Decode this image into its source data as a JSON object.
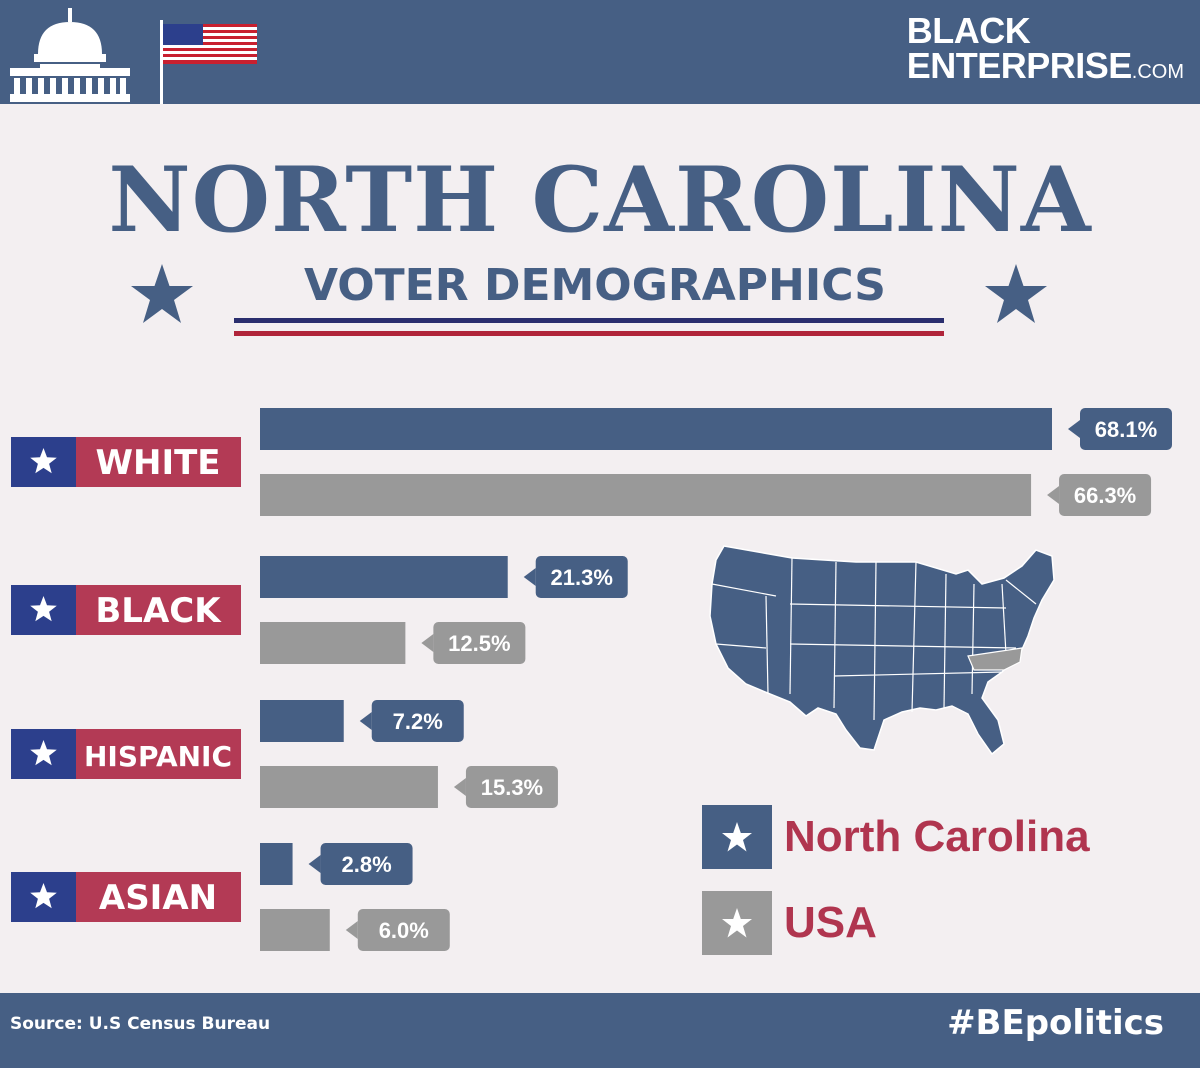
{
  "header": {
    "brand_line1": "BLACK",
    "brand_line2": "ENTERPRISE",
    "brand_suffix": ".COM",
    "icons": [
      "capitol-icon",
      "us-flag-icon"
    ]
  },
  "title": "NORTH CAROLINA",
  "subtitle": "VOTER DEMOGRAPHICS",
  "legend": {
    "north_carolina": "North Carolina",
    "usa": "USA"
  },
  "footer": {
    "source": "Source: U.S Census Bureau",
    "hashtag": "#BEpolitics"
  },
  "colors": {
    "primary_blue": "#465f84",
    "usa_gray": "#999999",
    "label_red": "#b33a55",
    "star_blue": "#2c3f8c",
    "background": "#f3eff1"
  },
  "chart_data": {
    "type": "bar",
    "orientation": "horizontal",
    "categories": [
      "WHITE",
      "BLACK",
      "HISPANIC",
      "ASIAN"
    ],
    "series": [
      {
        "name": "North Carolina",
        "values": [
          68.1,
          21.3,
          7.2,
          2.8
        ],
        "labels": [
          "68.1%",
          "21.3%",
          "7.2%",
          "2.8%"
        ]
      },
      {
        "name": "USA",
        "values": [
          66.3,
          12.5,
          15.3,
          6.0
        ],
        "labels": [
          "66.3%",
          "12.5%",
          "15.3%",
          "6.0%"
        ]
      }
    ],
    "unit": "%",
    "xlim": [
      0,
      68.1
    ],
    "grid": false,
    "legend_position": "bottom-right"
  }
}
